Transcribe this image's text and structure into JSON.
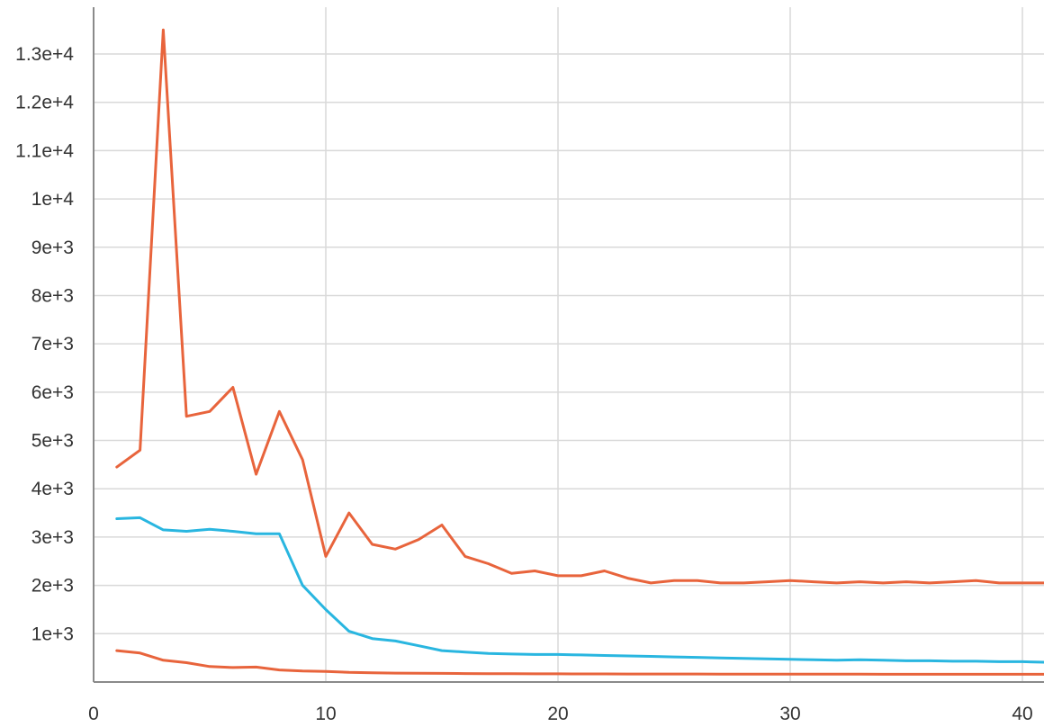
{
  "chart_data": {
    "type": "line",
    "title": "",
    "xlabel": "",
    "ylabel": "",
    "xlim": [
      0,
      41
    ],
    "ylim": [
      0,
      13500
    ],
    "grid": true,
    "x_ticks": [
      0,
      10,
      20,
      30,
      40
    ],
    "x_tick_labels": [
      "0",
      "10",
      "20",
      "30",
      "40"
    ],
    "y_ticks": [
      1000,
      2000,
      3000,
      4000,
      5000,
      6000,
      7000,
      8000,
      9000,
      10000,
      11000,
      12000,
      13000
    ],
    "y_tick_labels": [
      "1e+3",
      "2e+3",
      "3e+3",
      "4e+3",
      "5e+3",
      "6e+3",
      "7e+3",
      "8e+3",
      "9e+3",
      "1e+4",
      "1.1e+4",
      "1.2e+4",
      "1.3e+4"
    ],
    "series": [
      {
        "color": "#e8643c",
        "x": [
          1,
          2,
          3,
          4,
          5,
          6,
          7,
          8,
          9,
          10,
          11,
          12,
          13,
          14,
          15,
          16,
          17,
          18,
          19,
          20,
          21,
          22,
          23,
          24,
          25,
          26,
          27,
          28,
          29,
          30,
          31,
          32,
          33,
          34,
          35,
          36,
          37,
          38,
          39,
          40,
          41
        ],
        "values": [
          4450,
          4800,
          13500,
          5500,
          5600,
          6100,
          4300,
          5600,
          4600,
          2600,
          3500,
          2850,
          2750,
          2950,
          3250,
          2600,
          2450,
          2250,
          2300,
          2200,
          2200,
          2300,
          2150,
          2050,
          2100,
          2100,
          2050,
          2050,
          2075,
          2100,
          2075,
          2050,
          2075,
          2050,
          2075,
          2050,
          2075,
          2100,
          2050,
          2050,
          2050
        ]
      },
      {
        "color": "#29b6e0",
        "x": [
          1,
          2,
          3,
          4,
          5,
          6,
          7,
          8,
          9,
          10,
          11,
          12,
          13,
          14,
          15,
          16,
          17,
          18,
          19,
          20,
          21,
          22,
          23,
          24,
          25,
          26,
          27,
          28,
          29,
          30,
          31,
          32,
          33,
          34,
          35,
          36,
          37,
          38,
          39,
          40,
          41
        ],
        "values": [
          3380,
          3400,
          3150,
          3120,
          3160,
          3120,
          3070,
          3070,
          2000,
          1500,
          1050,
          900,
          850,
          750,
          650,
          620,
          590,
          580,
          570,
          570,
          560,
          550,
          540,
          530,
          520,
          510,
          500,
          490,
          480,
          470,
          460,
          450,
          460,
          450,
          440,
          440,
          430,
          430,
          420,
          420,
          410
        ]
      },
      {
        "color": "#e8643c",
        "x": [
          1,
          2,
          3,
          4,
          5,
          6,
          7,
          8,
          9,
          10,
          11,
          12,
          13,
          14,
          15,
          16,
          17,
          18,
          19,
          20,
          21,
          22,
          23,
          24,
          25,
          26,
          27,
          28,
          29,
          30,
          31,
          32,
          33,
          34,
          35,
          36,
          37,
          38,
          39,
          40,
          41
        ],
        "values": [
          650,
          600,
          450,
          400,
          320,
          300,
          310,
          250,
          230,
          220,
          200,
          190,
          185,
          180,
          178,
          176,
          174,
          172,
          170,
          170,
          168,
          168,
          166,
          166,
          165,
          165,
          164,
          164,
          163,
          163,
          162,
          162,
          162,
          161,
          161,
          161,
          160,
          160,
          160,
          160,
          160
        ]
      }
    ]
  }
}
